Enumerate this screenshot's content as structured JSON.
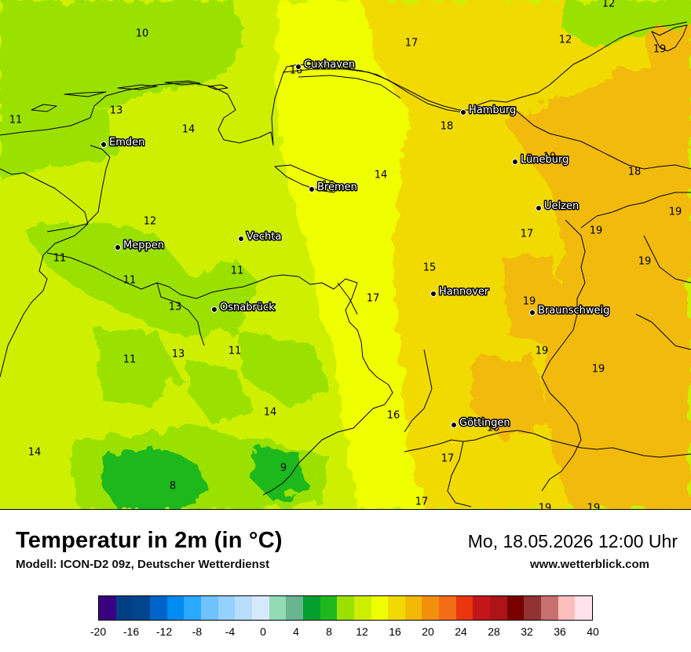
{
  "title": "Temperatur in 2m (in °C)",
  "subtitle": "Modell: ICON-D2 09z, Deutscher Wetterdienst",
  "datetime": "Mo, 18.05.2026 12:00 Uhr",
  "website": "www.wetterblick.com",
  "cities": [
    {
      "name": "Cuxhaven"
    },
    {
      "name": "Hamburg"
    },
    {
      "name": "Emden"
    },
    {
      "name": "Lüneburg"
    },
    {
      "name": "Bremen"
    },
    {
      "name": "Uelzen"
    },
    {
      "name": "Vechta"
    },
    {
      "name": "Meppen"
    },
    {
      "name": "Hannover"
    },
    {
      "name": "Osnabrück"
    },
    {
      "name": "Braunschweig"
    },
    {
      "name": "Göttingen"
    }
  ],
  "temperature_labels": [
    "12",
    "10",
    "17",
    "12",
    "19",
    "16",
    "13",
    "14",
    "11",
    "18",
    "19",
    "14",
    "18",
    "16",
    "12",
    "19",
    "17",
    "19",
    "11",
    "19",
    "11",
    "15",
    "17",
    "19",
    "11",
    "19",
    "13",
    "11",
    "19",
    "13",
    "14",
    "11",
    "16",
    "14",
    "18",
    "17",
    "9",
    "8",
    "17",
    "19",
    "19"
  ],
  "legend": {
    "colors": [
      "#3a007f",
      "#003f86",
      "#00468c",
      "#0064c8",
      "#008cf0",
      "#2ba8ff",
      "#70c2ff",
      "#95d0ff",
      "#b9ddfd",
      "#d7e9fd",
      "#92dbb5",
      "#68b58f",
      "#03a02f",
      "#1db81e",
      "#9ae100",
      "#cef000",
      "#f0ff00",
      "#f1da03",
      "#f2ba07",
      "#f2900e",
      "#f26e15",
      "#e9360d",
      "#c3161b",
      "#ac1418",
      "#7b0000",
      "#933331",
      "#c77070",
      "#fdbebe",
      "#ffe3e8"
    ],
    "ticks": [
      "-20",
      "-16",
      "-12",
      "-8",
      "-4",
      "0",
      "4",
      "8",
      "12",
      "16",
      "20",
      "24",
      "28",
      "32",
      "36",
      "40"
    ]
  }
}
